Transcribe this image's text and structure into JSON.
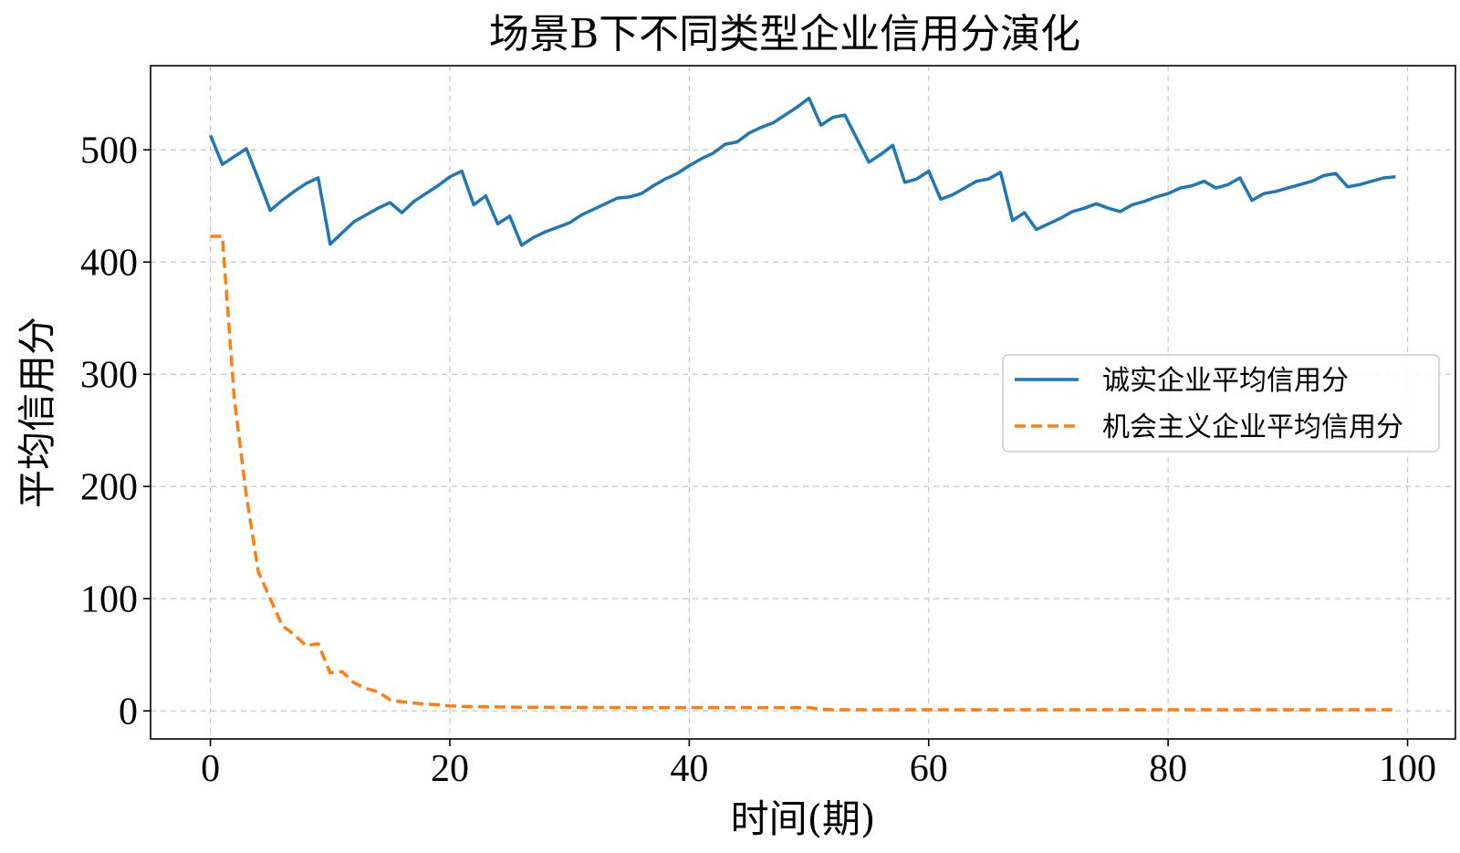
{
  "chart_data": {
    "type": "line",
    "title": "场景B下不同类型企业信用分演化",
    "xlabel": "时间(期)",
    "ylabel": "平均信用分",
    "xlim": [
      -5,
      104
    ],
    "ylim": [
      -25,
      575
    ],
    "xticks": [
      0,
      20,
      40,
      60,
      80,
      100
    ],
    "yticks": [
      0,
      100,
      200,
      300,
      400,
      500
    ],
    "grid": true,
    "legend_position": "center-right",
    "series": [
      {
        "name": "诚实企业平均信用分",
        "color": "#1f77b4",
        "style": "solid",
        "x": [
          0,
          1,
          2,
          3,
          4,
          5,
          6,
          7,
          8,
          9,
          10,
          11,
          12,
          13,
          14,
          15,
          16,
          17,
          18,
          19,
          20,
          21,
          22,
          23,
          24,
          25,
          26,
          27,
          28,
          29,
          30,
          31,
          32,
          33,
          34,
          35,
          36,
          37,
          38,
          39,
          40,
          41,
          42,
          43,
          44,
          45,
          46,
          47,
          48,
          49,
          50,
          51,
          52,
          53,
          54,
          55,
          56,
          57,
          58,
          59,
          60,
          61,
          62,
          63,
          64,
          65,
          66,
          67,
          68,
          69,
          70,
          71,
          72,
          73,
          74,
          75,
          76,
          77,
          78,
          79,
          80,
          81,
          82,
          83,
          84,
          85,
          86,
          87,
          88,
          89,
          90,
          91,
          92,
          93,
          94,
          95,
          96,
          97,
          98,
          99
        ],
        "y": [
          513,
          487,
          494,
          501,
          474,
          446,
          455,
          463,
          470,
          475,
          416,
          426,
          436,
          442,
          448,
          453,
          444,
          454,
          461,
          468,
          476,
          481,
          451,
          459,
          434,
          441,
          415,
          422,
          427,
          431,
          435,
          442,
          447,
          452,
          457,
          458,
          461,
          468,
          474,
          479,
          486,
          492,
          497,
          505,
          507,
          515,
          520,
          524,
          531,
          538,
          546,
          522,
          529,
          531,
          510,
          489,
          496,
          504,
          471,
          474,
          481,
          456,
          460,
          466,
          472,
          474,
          480,
          437,
          444,
          429,
          434,
          439,
          445,
          448,
          452,
          448,
          445,
          451,
          454,
          458,
          461,
          466,
          468,
          472,
          466,
          469,
          475,
          455,
          461,
          463,
          466,
          469,
          472,
          477,
          479,
          467,
          469,
          472,
          475,
          476
        ]
      },
      {
        "name": "机会主义企业平均信用分",
        "color": "#ff7f0e",
        "style": "dashed",
        "x": [
          0,
          1,
          2,
          3,
          4,
          5,
          6,
          7,
          8,
          9,
          10,
          11,
          12,
          13,
          14,
          15,
          16,
          17,
          18,
          19,
          20,
          21,
          22,
          23,
          24,
          25,
          26,
          27,
          28,
          29,
          30,
          35,
          40,
          45,
          50,
          51,
          52,
          55,
          60,
          65,
          70,
          75,
          80,
          85,
          90,
          95,
          99
        ],
        "y": [
          423,
          423,
          278,
          192,
          124,
          100,
          76,
          68,
          58,
          60,
          34,
          35,
          25,
          20,
          17,
          10,
          8,
          7,
          6,
          5.5,
          4.5,
          4,
          3.8,
          3.6,
          3.5,
          3.4,
          3.3,
          3.2,
          3.2,
          3.1,
          3.1,
          3.0,
          3.0,
          3.0,
          3.0,
          1.5,
          1.0,
          1.0,
          1.0,
          1.0,
          1.0,
          1.0,
          1.0,
          1.0,
          1.0,
          1.0,
          1.0
        ]
      }
    ]
  }
}
